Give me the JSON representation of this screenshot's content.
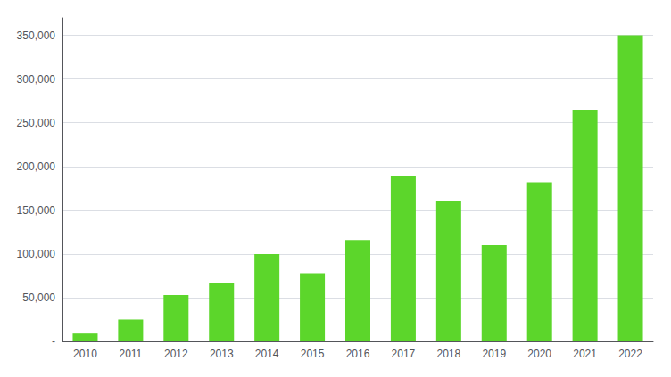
{
  "chart_data": {
    "type": "bar",
    "categories": [
      "2010",
      "2011",
      "2012",
      "2013",
      "2014",
      "2015",
      "2016",
      "2017",
      "2018",
      "2019",
      "2020",
      "2021",
      "2022"
    ],
    "values": [
      9000,
      25000,
      53000,
      67000,
      100000,
      78000,
      116000,
      189000,
      160000,
      110000,
      182000,
      265000,
      350000
    ],
    "color": "#5cd62b",
    "ylim": [
      0,
      370000
    ],
    "yticks": [
      {
        "value": 0,
        "label": "-"
      },
      {
        "value": 50000,
        "label": "50,000"
      },
      {
        "value": 100000,
        "label": "100,000"
      },
      {
        "value": 150000,
        "label": "150,000"
      },
      {
        "value": 200000,
        "label": "200,000"
      },
      {
        "value": 250000,
        "label": "250,000"
      },
      {
        "value": 300000,
        "label": "300,000"
      },
      {
        "value": 350000,
        "label": "350,000"
      }
    ],
    "grid": true
  }
}
